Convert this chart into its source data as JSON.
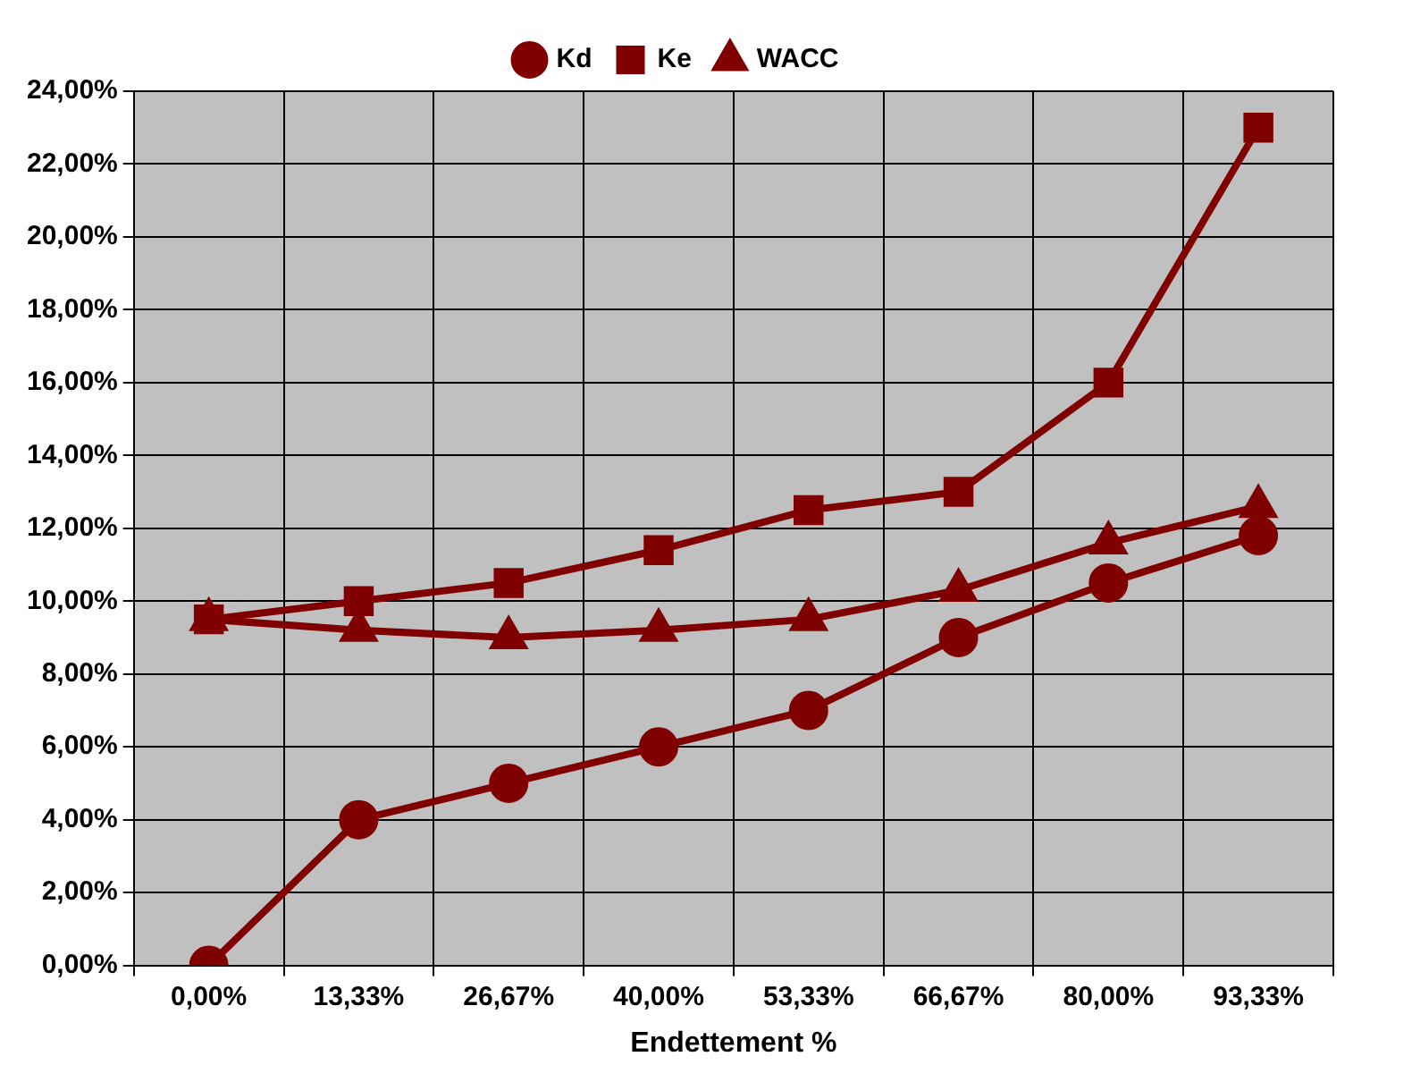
{
  "chart_data": {
    "type": "line",
    "xlabel": "Endettement %",
    "categories": [
      "0,00%",
      "13,33%",
      "26,67%",
      "40,00%",
      "53,33%",
      "66,67%",
      "80,00%",
      "93,33%"
    ],
    "series": [
      {
        "name": "Kd",
        "color": "#800000",
        "marker": "circle",
        "values": [
          0,
          4,
          5,
          6,
          7,
          9,
          10.5,
          11.8
        ]
      },
      {
        "name": "Ke",
        "color": "#800000",
        "marker": "square",
        "values": [
          9.5,
          10,
          10.5,
          11.4,
          12.5,
          13,
          16,
          23
        ]
      },
      {
        "name": "WACC",
        "color": "#800000",
        "marker": "triangle",
        "values": [
          9.5,
          9.2,
          9.0,
          9.2,
          9.5,
          10.3,
          11.6,
          12.6
        ]
      }
    ],
    "ylim": [
      0,
      24
    ],
    "yticks": [
      {
        "value": 0,
        "label": "0,00%"
      },
      {
        "value": 2,
        "label": "2,00%"
      },
      {
        "value": 4,
        "label": "4,00%"
      },
      {
        "value": 6,
        "label": "6,00%"
      },
      {
        "value": 8,
        "label": "8,00%"
      },
      {
        "value": 10,
        "label": "10,00%"
      },
      {
        "value": 12,
        "label": "12,00%"
      },
      {
        "value": 14,
        "label": "14,00%"
      },
      {
        "value": 16,
        "label": "16,00%"
      },
      {
        "value": 18,
        "label": "18,00%"
      },
      {
        "value": 20,
        "label": "20,00%"
      },
      {
        "value": 22,
        "label": "22,00%"
      },
      {
        "value": 24,
        "label": "24,00%"
      }
    ],
    "grid": true,
    "legend": "top",
    "line_style": "solid"
  }
}
